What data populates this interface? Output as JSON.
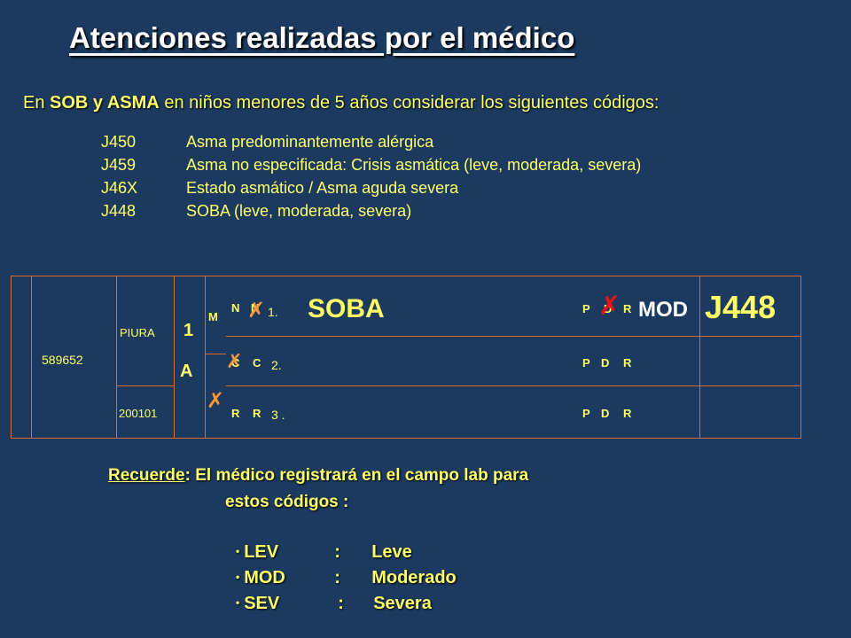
{
  "title": "Atenciones realizadas por el médico",
  "subtitle": {
    "pre": "En ",
    "bold": "SOB y ASMA",
    "post": " en niños menores de 5 años considerar los siguientes códigos:"
  },
  "codes": [
    {
      "code": "J450",
      "desc": "Asma predominantemente alérgica"
    },
    {
      "code": "J459",
      "desc": "Asma no especificada: Crisis asmática (leve, moderada, severa)"
    },
    {
      "code": "J46X",
      "desc": "Estado asmático / Asma aguda severa"
    },
    {
      "code": "J448",
      "desc": "SOBA (leve, moderada, severa)"
    }
  ],
  "form": {
    "patient_id": "589652",
    "place": "PIURA",
    "age": "1",
    "age_unit": "A",
    "date": "200101",
    "sex_label": "M",
    "row1": {
      "a": "N",
      "b": "N",
      "num": "1.",
      "dx": "SOBA",
      "p": "P",
      "d": "D",
      "r": "R",
      "lab": "MOD",
      "code": "J448"
    },
    "row2": {
      "a": "C",
      "b": "C",
      "num": "2.",
      "p": "P",
      "d": "D",
      "r": "R"
    },
    "row3": {
      "a": "R",
      "b": "R",
      "num": "3 .",
      "p": "P",
      "d": "D",
      "r": "R"
    },
    "mark_color": "#ff9933",
    "mark_red": "#ee1111"
  },
  "reminder": {
    "label": "Recuerde",
    "line1": ": El médico registrará en el campo lab para",
    "line2": "estos códigos :"
  },
  "legend": [
    {
      "key": "LEV",
      "sep": ":",
      "value": "Leve"
    },
    {
      "key": "MOD",
      "sep": ":",
      "value": "Moderado"
    },
    {
      "key": "SEV",
      "sep": ":",
      "value": "Severa"
    }
  ]
}
